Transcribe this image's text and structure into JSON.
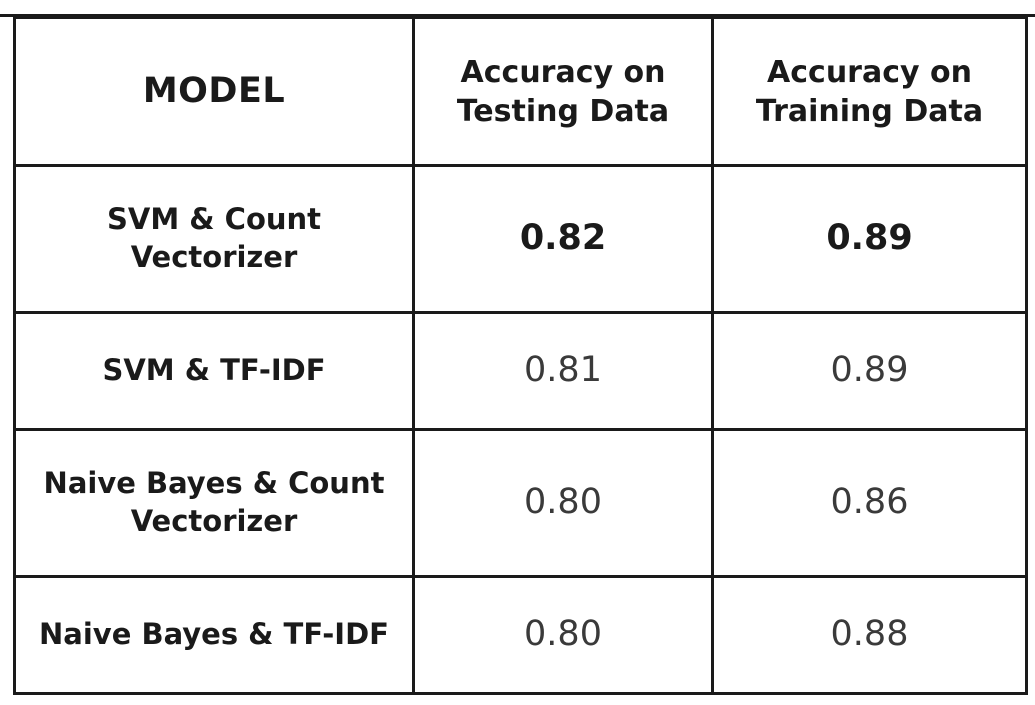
{
  "table": {
    "headers": {
      "model": "MODEL",
      "testing": [
        "Accuracy on",
        "Testing Data"
      ],
      "training": [
        "Accuracy on",
        "Training Data"
      ]
    },
    "rows": [
      {
        "model": [
          "SVM & Count",
          "Vectorizer"
        ],
        "testing": "0.82",
        "training": "0.89",
        "bold": true
      },
      {
        "model": [
          "SVM & TF-IDF"
        ],
        "testing": "0.81",
        "training": "0.89",
        "bold": false
      },
      {
        "model": [
          "Naive Bayes & Count",
          "Vectorizer"
        ],
        "testing": "0.80",
        "training": "0.86",
        "bold": false
      },
      {
        "model": [
          "Naive Bayes & TF-IDF"
        ],
        "testing": "0.80",
        "training": "0.88",
        "bold": false
      }
    ]
  }
}
